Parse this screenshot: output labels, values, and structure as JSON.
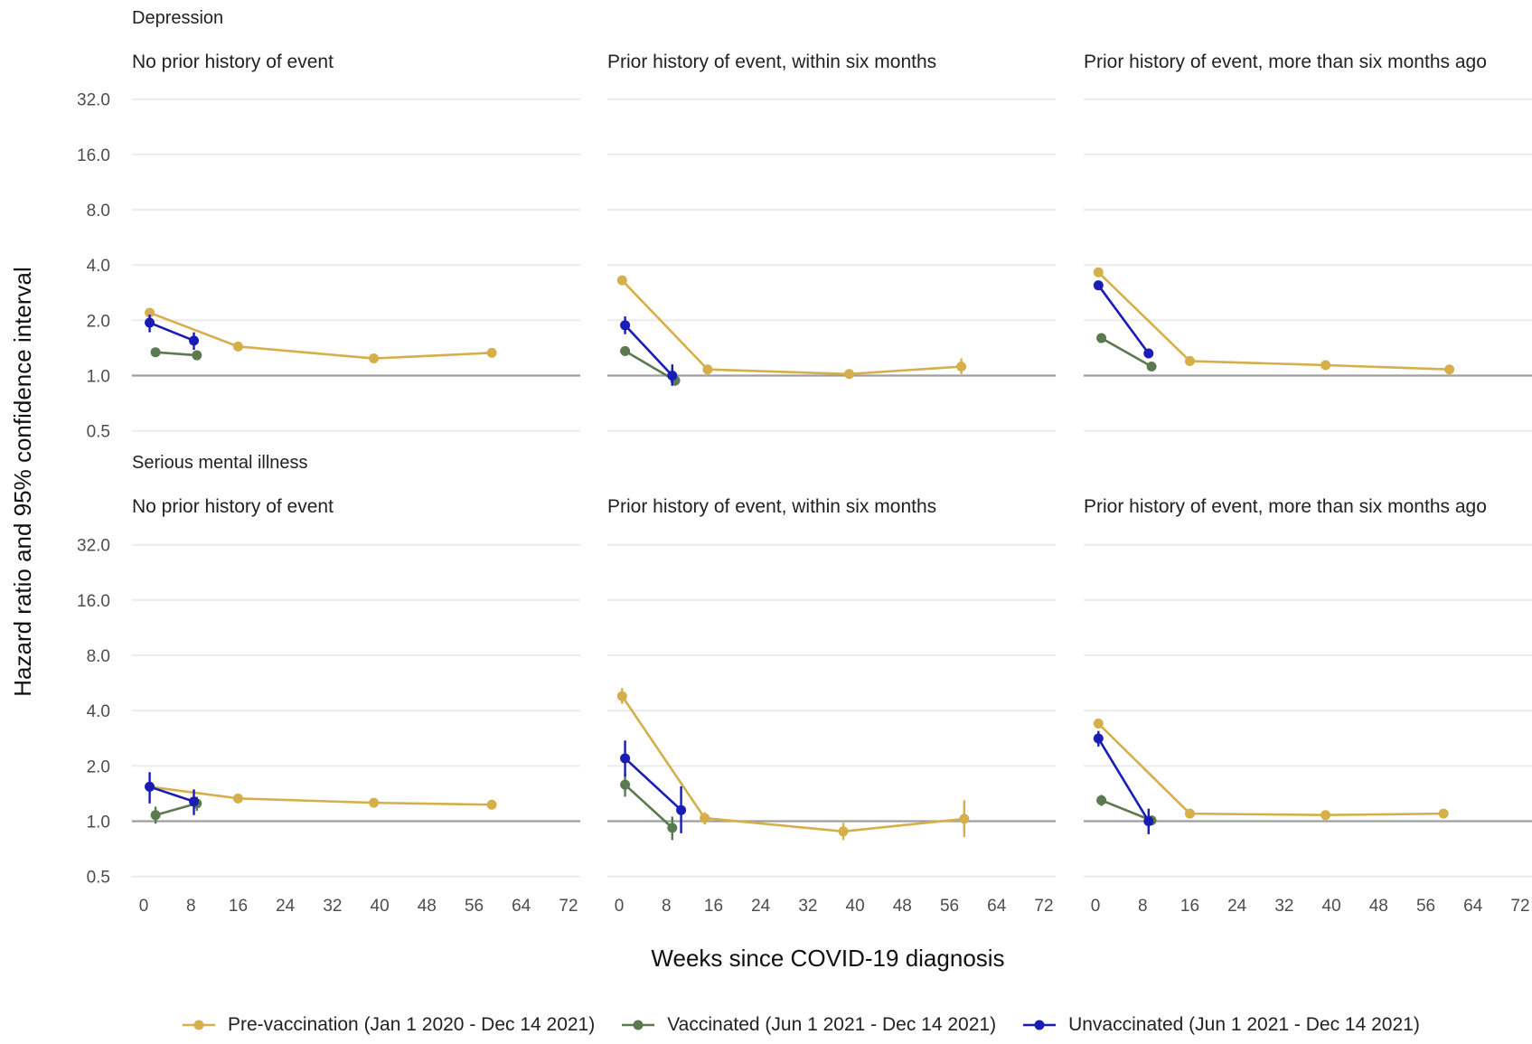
{
  "chart_data": {
    "type": "line",
    "ylabel": "Hazard ratio and 95% confidence interval",
    "xlabel": "Weeks since COVID-19 diagnosis",
    "y_scale": "log2",
    "y_ticks": [
      "0.5",
      "1.0",
      "2.0",
      "4.0",
      "8.0",
      "16.0",
      "32.0"
    ],
    "y_tick_values": [
      0.5,
      1,
      2,
      4,
      8,
      16,
      32
    ],
    "x_ticks": [
      "0",
      "8",
      "16",
      "24",
      "32",
      "40",
      "48",
      "56",
      "64",
      "72"
    ],
    "x_tick_values": [
      0,
      8,
      16,
      24,
      32,
      40,
      48,
      56,
      64,
      72
    ],
    "xlim": [
      -2,
      74
    ],
    "ylim": [
      0.43,
      40
    ],
    "reference_line": 1.0,
    "grid": true,
    "legend_position": "bottom",
    "legend": [
      {
        "label": "Pre-vaccination (Jan 1 2020 - Dec 14 2021)",
        "color": "#D4AF4A"
      },
      {
        "label": "Vaccinated (Jun 1 2021 - Dec 14 2021)",
        "color": "#5B7A50"
      },
      {
        "label": "Unvaccinated (Jun 1 2021 - Dec 14 2021)",
        "color": "#1A1DB5"
      }
    ],
    "rows": [
      {
        "outcome": "Depression",
        "panels": [
          {
            "title": "No prior history of event",
            "series": [
              {
                "name": "Pre-vaccination (Jan 1 2020 - Dec 14 2021)",
                "color": "#D4AF4A",
                "x": [
                  1,
                  16,
                  39,
                  59
                ],
                "y": [
                  2.2,
                  1.44,
                  1.24,
                  1.33
                ],
                "lo": [
                  2.1,
                  1.39,
                  1.2,
                  1.28
                ],
                "hi": [
                  2.3,
                  1.49,
                  1.28,
                  1.38
                ]
              },
              {
                "name": "Vaccinated (Jun 1 2021 - Dec 14 2021)",
                "color": "#5B7A50",
                "x": [
                  2,
                  9
                ],
                "y": [
                  1.34,
                  1.29
                ],
                "lo": [
                  1.3,
                  1.25
                ],
                "hi": [
                  1.38,
                  1.33
                ]
              },
              {
                "name": "Unvaccinated (Jun 1 2021 - Dec 14 2021)",
                "color": "#1A1DB5",
                "x": [
                  1,
                  8.5
                ],
                "y": [
                  1.94,
                  1.55
                ],
                "lo": [
                  1.72,
                  1.38
                ],
                "hi": [
                  2.15,
                  1.72
                ]
              }
            ]
          },
          {
            "title": "Prior history of event, within six months",
            "series": [
              {
                "name": "Pre-vaccination (Jan 1 2020 - Dec 14 2021)",
                "color": "#D4AF4A",
                "x": [
                  0.5,
                  15,
                  39,
                  58
                ],
                "y": [
                  3.3,
                  1.08,
                  1.02,
                  1.12
                ],
                "lo": [
                  3.1,
                  1.02,
                  0.98,
                  1.02
                ],
                "hi": [
                  3.5,
                  1.14,
                  1.06,
                  1.24
                ]
              },
              {
                "name": "Vaccinated (Jun 1 2021 - Dec 14 2021)",
                "color": "#5B7A50",
                "x": [
                  1,
                  9.5
                ],
                "y": [
                  1.36,
                  0.94
                ],
                "lo": [
                  1.28,
                  0.88
                ],
                "hi": [
                  1.44,
                  1.0
                ]
              },
              {
                "name": "Unvaccinated (Jun 1 2021 - Dec 14 2021)",
                "color": "#1A1DB5",
                "x": [
                  1,
                  9
                ],
                "y": [
                  1.88,
                  1.0
                ],
                "lo": [
                  1.68,
                  0.88
                ],
                "hi": [
                  2.1,
                  1.15
                ]
              }
            ]
          },
          {
            "title": "Prior history of event, more than six months ago",
            "series": [
              {
                "name": "Pre-vaccination (Jan 1 2020 - Dec 14 2021)",
                "color": "#D4AF4A",
                "x": [
                  0.5,
                  16,
                  39,
                  60
                ],
                "y": [
                  3.65,
                  1.2,
                  1.14,
                  1.08
                ],
                "lo": [
                  3.5,
                  1.16,
                  1.1,
                  1.04
                ],
                "hi": [
                  3.8,
                  1.24,
                  1.18,
                  1.12
                ]
              },
              {
                "name": "Vaccinated (Jun 1 2021 - Dec 14 2021)",
                "color": "#5B7A50",
                "x": [
                  1,
                  9.5
                ],
                "y": [
                  1.6,
                  1.12
                ],
                "lo": [
                  1.52,
                  1.06
                ],
                "hi": [
                  1.68,
                  1.18
                ]
              },
              {
                "name": "Unvaccinated (Jun 1 2021 - Dec 14 2021)",
                "color": "#1A1DB5",
                "x": [
                  0.5,
                  9
                ],
                "y": [
                  3.1,
                  1.32
                ],
                "lo": [
                  2.95,
                  1.26
                ],
                "hi": [
                  3.25,
                  1.38
                ]
              }
            ]
          }
        ]
      },
      {
        "outcome": "Serious mental illness",
        "panels": [
          {
            "title": "No prior history of event",
            "series": [
              {
                "name": "Pre-vaccination (Jan 1 2020 - Dec 14 2021)",
                "color": "#D4AF4A",
                "x": [
                  1,
                  16,
                  39,
                  59
                ],
                "y": [
                  1.54,
                  1.33,
                  1.26,
                  1.23
                ],
                "lo": [
                  1.46,
                  1.28,
                  1.21,
                  1.18
                ],
                "hi": [
                  1.62,
                  1.38,
                  1.31,
                  1.28
                ]
              },
              {
                "name": "Vaccinated (Jun 1 2021 - Dec 14 2021)",
                "color": "#5B7A50",
                "x": [
                  2,
                  9
                ],
                "y": [
                  1.08,
                  1.25
                ],
                "lo": [
                  0.97,
                  1.14
                ],
                "hi": [
                  1.2,
                  1.36
                ]
              },
              {
                "name": "Unvaccinated (Jun 1 2021 - Dec 14 2021)",
                "color": "#1A1DB5",
                "x": [
                  1,
                  8.5
                ],
                "y": [
                  1.54,
                  1.28
                ],
                "lo": [
                  1.25,
                  1.08
                ],
                "hi": [
                  1.85,
                  1.49
                ]
              }
            ]
          },
          {
            "title": "Prior history of event, within six months",
            "series": [
              {
                "name": "Pre-vaccination (Jan 1 2020 - Dec 14 2021)",
                "color": "#D4AF4A",
                "x": [
                  0.5,
                  14.5,
                  38,
                  58.5
                ],
                "y": [
                  4.8,
                  1.04,
                  0.88,
                  1.03
                ],
                "lo": [
                  4.35,
                  0.96,
                  0.79,
                  0.82
                ],
                "hi": [
                  5.3,
                  1.12,
                  0.98,
                  1.3
                ]
              },
              {
                "name": "Vaccinated (Jun 1 2021 - Dec 14 2021)",
                "color": "#5B7A50",
                "x": [
                  1,
                  9
                ],
                "y": [
                  1.58,
                  0.92
                ],
                "lo": [
                  1.36,
                  0.79
                ],
                "hi": [
                  1.82,
                  1.06
                ]
              },
              {
                "name": "Unvaccinated (Jun 1 2021 - Dec 14 2021)",
                "color": "#1A1DB5",
                "x": [
                  1,
                  10.5
                ],
                "y": [
                  2.2,
                  1.15
                ],
                "lo": [
                  1.75,
                  0.86
                ],
                "hi": [
                  2.75,
                  1.55
                ]
              }
            ]
          },
          {
            "title": "Prior history of event, more than six months ago",
            "series": [
              {
                "name": "Pre-vaccination (Jan 1 2020 - Dec 14 2021)",
                "color": "#D4AF4A",
                "x": [
                  0.5,
                  16,
                  39,
                  59
                ],
                "y": [
                  3.4,
                  1.1,
                  1.08,
                  1.1
                ],
                "lo": [
                  3.25,
                  1.05,
                  1.04,
                  1.04
                ],
                "hi": [
                  3.55,
                  1.15,
                  1.12,
                  1.16
                ]
              },
              {
                "name": "Vaccinated (Jun 1 2021 - Dec 14 2021)",
                "color": "#5B7A50",
                "x": [
                  1,
                  9.5
                ],
                "y": [
                  1.3,
                  1.01
                ],
                "lo": [
                  1.21,
                  0.95
                ],
                "hi": [
                  1.39,
                  1.07
                ]
              },
              {
                "name": "Unvaccinated (Jun 1 2021 - Dec 14 2021)",
                "color": "#1A1DB5",
                "x": [
                  0.5,
                  9
                ],
                "y": [
                  2.82,
                  1.0
                ],
                "lo": [
                  2.55,
                  0.85
                ],
                "hi": [
                  3.1,
                  1.17
                ]
              }
            ]
          }
        ]
      }
    ]
  }
}
